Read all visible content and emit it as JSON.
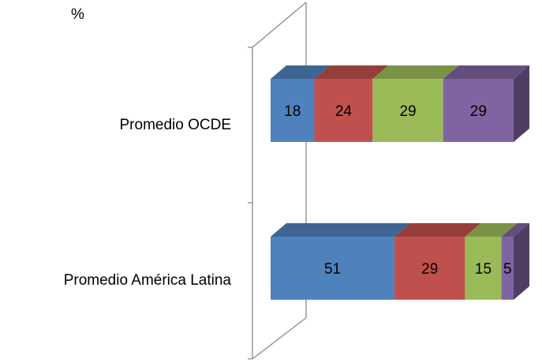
{
  "chart_data": {
    "type": "bar",
    "orientation": "horizontal",
    "stacked": true,
    "three_d": true,
    "unit_label": "%",
    "categories": [
      "Promedio OCDE",
      "Promedio América Latina"
    ],
    "series": [
      {
        "values": [
          18,
          51
        ],
        "color": "#4f81bd"
      },
      {
        "values": [
          24,
          29
        ],
        "color": "#c0504d"
      },
      {
        "values": [
          29,
          15
        ],
        "color": "#9bbb59"
      },
      {
        "values": [
          29,
          5
        ],
        "color": "#8064a2"
      }
    ],
    "xlim": [
      0,
      100
    ],
    "grid": false,
    "legend": "none"
  }
}
